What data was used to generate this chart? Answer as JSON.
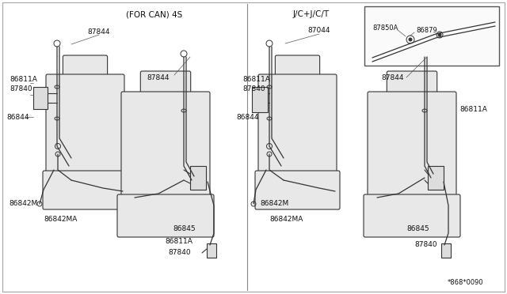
{
  "background_color": "#ffffff",
  "fig_width": 6.4,
  "fig_height": 3.72,
  "dpi": 100,
  "subtitle_left": "(FOR CAN) 4S",
  "subtitle_right": "J/C+J/C/T",
  "watermark": "*868*0090",
  "line_color": "#333333",
  "label_fontsize": 6.5,
  "label_color": "#111111",
  "border_color": "#888888"
}
